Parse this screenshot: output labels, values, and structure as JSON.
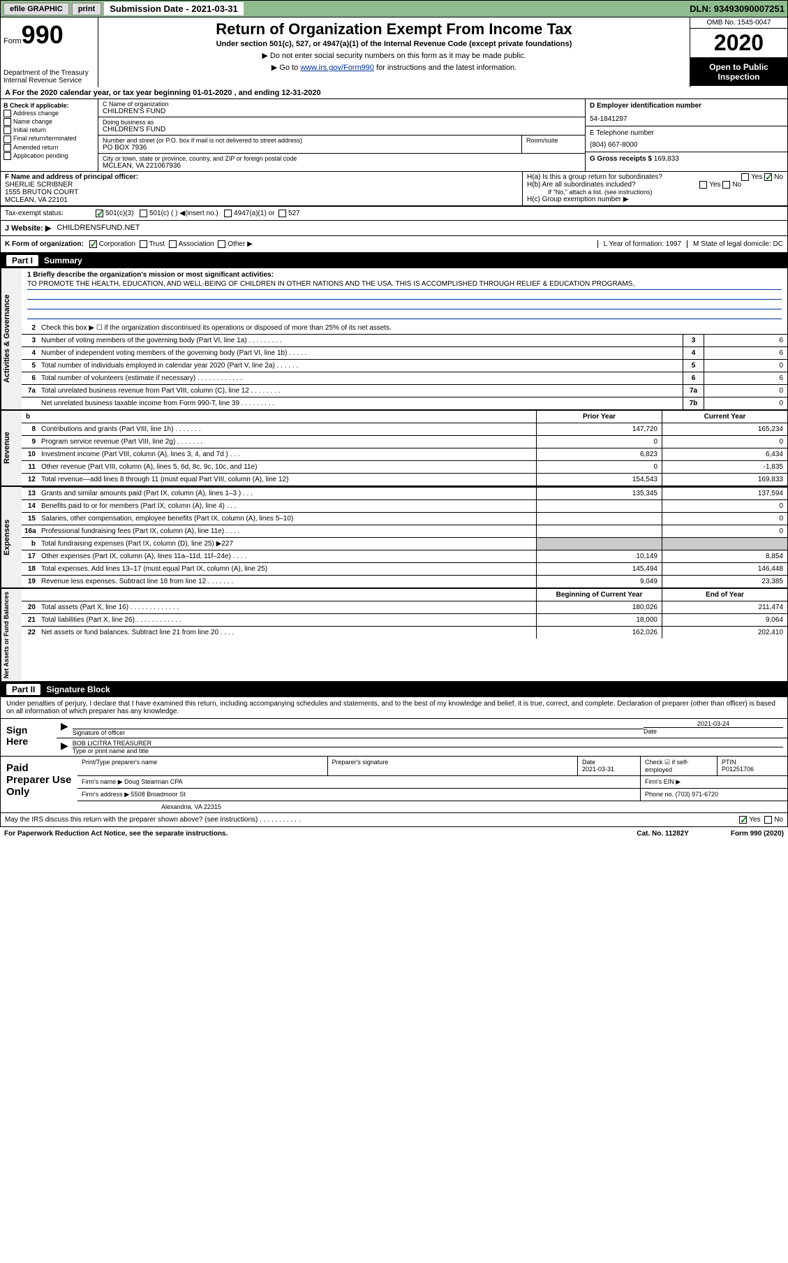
{
  "topbar": {
    "efile": "efile GRAPHIC",
    "print": "print",
    "submission_label": "Submission Date - 2021-03-31",
    "dln": "DLN: 93493090007251"
  },
  "header": {
    "form_prefix": "Form",
    "form_num": "990",
    "dept": "Department of the Treasury\nInternal Revenue Service",
    "title": "Return of Organization Exempt From Income Tax",
    "subtitle": "Under section 501(c), 527, or 4947(a)(1) of the Internal Revenue Code (except private foundations)",
    "note1": "▶ Do not enter social security numbers on this form as it may be made public.",
    "note2_prefix": "▶ Go to ",
    "note2_link": "www.irs.gov/Form990",
    "note2_suffix": " for instructions and the latest information.",
    "omb": "OMB No. 1545-0047",
    "year": "2020",
    "inspect": "Open to Public Inspection"
  },
  "period": "A For the 2020 calendar year, or tax year beginning 01-01-2020     , and ending 12-31-2020",
  "colB": {
    "label": "B Check if applicable:",
    "opts": [
      "Address change",
      "Name change",
      "Initial return",
      "Final return/terminated",
      "Amended return",
      "Application pending"
    ]
  },
  "colC": {
    "name_label": "C Name of organization",
    "name": "CHILDREN'S FUND",
    "dba_label": "Doing business as",
    "dba": "CHILDREN'S FUND",
    "addr_label": "Number and street (or P.O. box if mail is not delivered to street address)",
    "room_label": "Room/suite",
    "addr": "PO BOX 7936",
    "city_label": "City or town, state or province, country, and ZIP or foreign postal code",
    "city": "MCLEAN, VA  221067936"
  },
  "colD": {
    "ein_label": "D Employer identification number",
    "ein": "54-1841297",
    "phone_label": "E Telephone number",
    "phone": "(804) 667-8000",
    "gross_label": "G Gross receipts $",
    "gross": "169,833"
  },
  "f": {
    "label": "F  Name and address of principal officer:",
    "name": "SHERLIE SCRIBNER",
    "addr1": "1555 BRUTON COURT",
    "addr2": "MCLEAN, VA  22101"
  },
  "h": {
    "a": "H(a)  Is this a group return for subordinates?",
    "b": "H(b)  Are all subordinates included?",
    "b_note": "If \"No,\" attach a list. (see instructions)",
    "c": "H(c)  Group exemption number ▶"
  },
  "taxrow": {
    "label": "Tax-exempt status:",
    "o1": "501(c)(3)",
    "o2": "501(c) (  ) ◀(insert no.)",
    "o3": "4947(a)(1) or",
    "o4": "527"
  },
  "website": {
    "label": "J Website: ▶",
    "val": "CHILDRENSFUND.NET"
  },
  "krow": {
    "label": "K Form of organization:",
    "opts": [
      "Corporation",
      "Trust",
      "Association",
      "Other ▶"
    ],
    "l": "L Year of formation: 1997",
    "m": "M State of legal domicile: DC"
  },
  "part1": {
    "num": "Part I",
    "title": "Summary"
  },
  "mission": {
    "label": "1  Briefly describe the organization's mission or most significant activities:",
    "text": "TO PROMOTE THE HEALTH, EDUCATION, AND WELL-BEING OF CHILDREN IN OTHER NATIONS AND THE USA. THIS IS ACCOMPLISHED THROUGH RELIEF & EDUCATION PROGRAMS,"
  },
  "line2": "Check this box ▶ ☐  if the organization discontinued its operations or disposed of more than 25% of its net assets.",
  "activities_rows": [
    {
      "n": "3",
      "d": "Number of voting members of the governing body (Part VI, line 1a)   .   .   .   .   .   .   .   .   .",
      "b": "3",
      "v": "6"
    },
    {
      "n": "4",
      "d": "Number of independent voting members of the governing body (Part VI, line 1b)   .   .   .   .   .",
      "b": "4",
      "v": "6"
    },
    {
      "n": "5",
      "d": "Total number of individuals employed in calendar year 2020 (Part V, line 2a)   .   .   .   .   .   .",
      "b": "5",
      "v": "0"
    },
    {
      "n": "6",
      "d": "Total number of volunteers (estimate if necessary)     .   .   .   .   .   .   .   .   .   .   .   .",
      "b": "6",
      "v": "6"
    },
    {
      "n": "7a",
      "d": "Total unrelated business revenue from Part VIII, column (C), line 12   .   .   .   .   .   .   .   .",
      "b": "7a",
      "v": "0"
    },
    {
      "n": "",
      "d": "Net unrelated business taxable income from Form 990-T, line 39   .   .   .   .   .   .   .   .   .",
      "b": "7b",
      "v": "0"
    }
  ],
  "col_hdrs": {
    "py": "Prior Year",
    "cy": "Current Year"
  },
  "revenue_rows": [
    {
      "n": "8",
      "d": "Contributions and grants (Part VIII, line 1h)   .   .   .   .   .   .   .",
      "v1": "147,720",
      "v2": "165,234"
    },
    {
      "n": "9",
      "d": "Program service revenue (Part VIII, line 2g)   .   .   .   .   .   .   .",
      "v1": "0",
      "v2": "0"
    },
    {
      "n": "10",
      "d": "Investment income (Part VIII, column (A), lines 3, 4, and 7d )   .   .   .",
      "v1": "6,823",
      "v2": "6,434"
    },
    {
      "n": "11",
      "d": "Other revenue (Part VIII, column (A), lines 5, 6d, 8c, 9c, 10c, and 11e)",
      "v1": "0",
      "v2": "-1,835"
    },
    {
      "n": "12",
      "d": "Total revenue—add lines 8 through 11 (must equal Part VIII, column (A), line 12)",
      "v1": "154,543",
      "v2": "169,833"
    }
  ],
  "expense_rows": [
    {
      "n": "13",
      "d": "Grants and similar amounts paid (Part IX, column (A), lines 1–3 )   .   .   .",
      "v1": "135,345",
      "v2": "137,594"
    },
    {
      "n": "14",
      "d": "Benefits paid to or for members (Part IX, column (A), line 4)   .   .   .",
      "v1": "",
      "v2": "0"
    },
    {
      "n": "15",
      "d": "Salaries, other compensation, employee benefits (Part IX, column (A), lines 5–10)",
      "v1": "",
      "v2": "0"
    },
    {
      "n": "16a",
      "d": "Professional fundraising fees (Part IX, column (A), line 11e)   .   .   .   .",
      "v1": "",
      "v2": "0"
    },
    {
      "n": "b",
      "d": "Total fundraising expenses (Part IX, column (D), line 25) ▶227",
      "v1": "shade",
      "v2": "shade"
    },
    {
      "n": "17",
      "d": "Other expenses (Part IX, column (A), lines 11a–11d, 11f–24e)   .   .   .   .",
      "v1": "10,149",
      "v2": "8,854"
    },
    {
      "n": "18",
      "d": "Total expenses. Add lines 13–17 (must equal Part IX, column (A), line 25)",
      "v1": "145,494",
      "v2": "146,448"
    },
    {
      "n": "19",
      "d": "Revenue less expenses. Subtract line 18 from line 12   .   .   .   .   .   .   .",
      "v1": "9,049",
      "v2": "23,385"
    }
  ],
  "na_hdrs": {
    "b": "Beginning of Current Year",
    "e": "End of Year"
  },
  "na_rows": [
    {
      "n": "20",
      "d": "Total assets (Part X, line 16)   .   .   .   .   .   .   .   .   .   .   .   .   .",
      "v1": "180,026",
      "v2": "211,474"
    },
    {
      "n": "21",
      "d": "Total liabilities (Part X, line 26)   .   .   .   .   .   .   .   .   .   .   .   .",
      "v1": "18,000",
      "v2": "9,064"
    },
    {
      "n": "22",
      "d": "Net assets or fund balances. Subtract line 21 from line 20   .   .   .   .",
      "v1": "162,026",
      "v2": "202,410"
    }
  ],
  "vtabs": {
    "ag": "Activities & Governance",
    "rev": "Revenue",
    "exp": "Expenses",
    "na": "Net Assets or Fund Balances"
  },
  "part2": {
    "num": "Part II",
    "title": "Signature Block"
  },
  "sig_text": "Under penalties of perjury, I declare that I have examined this return, including accompanying schedules and statements, and to the best of my knowledge and belief, it is true, correct, and complete. Declaration of preparer (other than officer) is based on all information of which preparer has any knowledge.",
  "sign": {
    "here": "Sign Here",
    "sig_label": "Signature of officer",
    "date_label": "Date",
    "date": "2021-03-24",
    "name": "BOB LICITRA  TREASURER",
    "name_label": "Type or print name and title"
  },
  "prep": {
    "left": "Paid Preparer Use Only",
    "h1": "Print/Type preparer's name",
    "h2": "Preparer's signature",
    "h3": "Date",
    "date": "2021-03-31",
    "h4": "Check ☑ if self-employed",
    "h5": "PTIN",
    "ptin": "P01251706",
    "firm_label": "Firm's name      ▶",
    "firm": "Doug Stearman CPA",
    "ein_label": "Firm's EIN ▶",
    "addr_label": "Firm's address ▶",
    "addr1": "5508 Broadmoor St",
    "addr2": "Alexandria, VA  22315",
    "phone_label": "Phone no.",
    "phone": "(703) 971-6720"
  },
  "discuss": "May the IRS discuss this return with the preparer shown above? (see instructions)   .   .   .   .   .   .   .   .   .   .   .",
  "footer": {
    "left": "For Paperwork Reduction Act Notice, see the separate instructions.",
    "mid": "Cat. No. 11282Y",
    "right": "Form 990 (2020)"
  }
}
